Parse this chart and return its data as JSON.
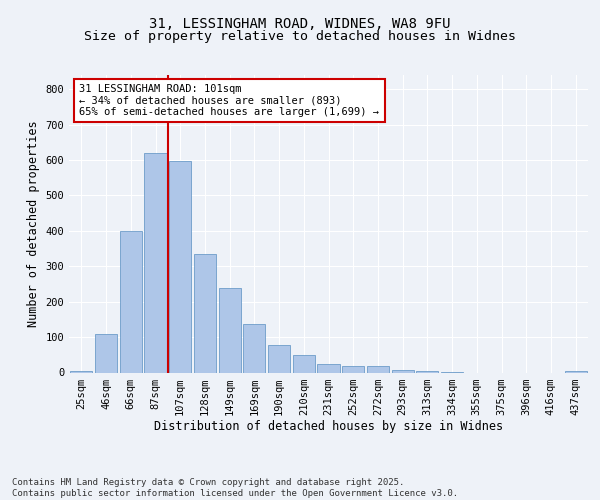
{
  "title1": "31, LESSINGHAM ROAD, WIDNES, WA8 9FU",
  "title2": "Size of property relative to detached houses in Widnes",
  "xlabel": "Distribution of detached houses by size in Widnes",
  "ylabel": "Number of detached properties",
  "bar_labels": [
    "25sqm",
    "46sqm",
    "66sqm",
    "87sqm",
    "107sqm",
    "128sqm",
    "149sqm",
    "169sqm",
    "190sqm",
    "210sqm",
    "231sqm",
    "252sqm",
    "272sqm",
    "293sqm",
    "313sqm",
    "334sqm",
    "355sqm",
    "375sqm",
    "396sqm",
    "416sqm",
    "437sqm"
  ],
  "bar_values": [
    5,
    110,
    400,
    620,
    597,
    335,
    238,
    138,
    79,
    50,
    23,
    18,
    18,
    7,
    3,
    1,
    0,
    0,
    0,
    0,
    5
  ],
  "bar_color": "#aec6e8",
  "bar_edge_color": "#5a8fc2",
  "vline_index": 4,
  "vline_color": "#cc0000",
  "annotation_text": "31 LESSINGHAM ROAD: 101sqm\n← 34% of detached houses are smaller (893)\n65% of semi-detached houses are larger (1,699) →",
  "annotation_box_color": "#ffffff",
  "annotation_box_edge": "#cc0000",
  "ylim": [
    0,
    840
  ],
  "yticks": [
    0,
    100,
    200,
    300,
    400,
    500,
    600,
    700,
    800
  ],
  "background_color": "#eef2f8",
  "grid_color": "#ffffff",
  "footer_text": "Contains HM Land Registry data © Crown copyright and database right 2025.\nContains public sector information licensed under the Open Government Licence v3.0.",
  "title_fontsize": 10,
  "subtitle_fontsize": 9.5,
  "axis_label_fontsize": 8.5,
  "tick_fontsize": 7.5,
  "footer_fontsize": 6.5,
  "annotation_fontsize": 7.5
}
